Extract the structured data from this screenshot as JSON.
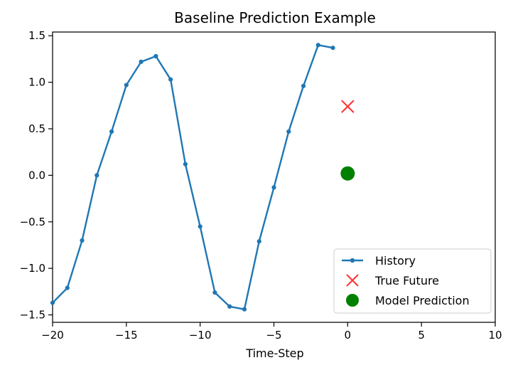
{
  "chart_data": {
    "type": "line",
    "title": "Baseline Prediction Example",
    "xlabel": "Time-Step",
    "ylabel": "",
    "xlim": [
      -20,
      10
    ],
    "ylim": [
      -1.58,
      1.54
    ],
    "xticks": [
      -20,
      -15,
      -10,
      -5,
      0,
      5,
      10
    ],
    "xtick_labels": [
      "−20",
      "−15",
      "−10",
      "−5",
      "0",
      "5",
      "10"
    ],
    "yticks": [
      -1.5,
      -1.0,
      -0.5,
      0.0,
      0.5,
      1.0,
      1.5
    ],
    "ytick_labels": [
      "−1.5",
      "−1.0",
      "−0.5",
      "0.0",
      "0.5",
      "1.0",
      "1.5"
    ],
    "grid": false,
    "legend_position": "lower-right",
    "series": [
      {
        "name": "History",
        "kind": "line-with-points",
        "color": "#1f77b4",
        "x": [
          -20,
          -19,
          -18,
          -17,
          -16,
          -15,
          -14,
          -13,
          -12,
          -11,
          -10,
          -9,
          -8,
          -7,
          -6,
          -5,
          -4,
          -3,
          -2,
          -1
        ],
        "y": [
          -1.37,
          -1.21,
          -0.7,
          0.0,
          0.47,
          0.97,
          1.22,
          1.28,
          1.03,
          0.12,
          -0.55,
          -1.26,
          -1.41,
          -1.44,
          -0.71,
          -0.13,
          0.47,
          0.96,
          1.4,
          1.37
        ]
      },
      {
        "name": "True Future",
        "kind": "x-marker",
        "color": "#ff3333",
        "x": [
          0
        ],
        "y": [
          0.74
        ]
      },
      {
        "name": "Model Prediction",
        "kind": "circle-marker",
        "color": "#008000",
        "x": [
          0
        ],
        "y": [
          0.02
        ]
      }
    ]
  }
}
